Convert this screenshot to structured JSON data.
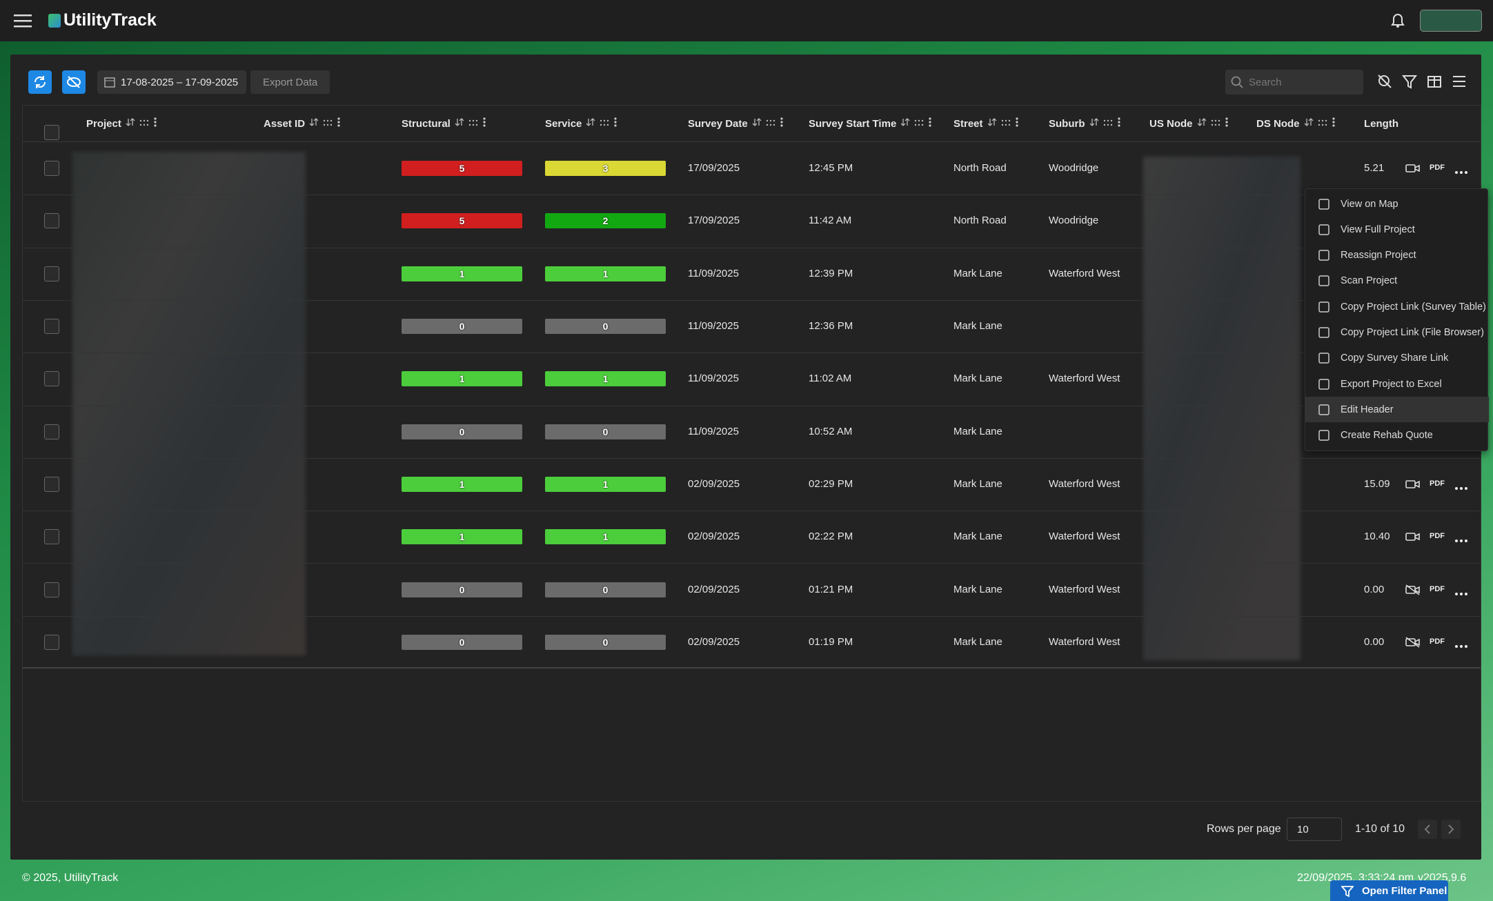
{
  "header": {
    "brand": "UtilityTrack"
  },
  "toolbar": {
    "date_range": "17-08-2025 – 17-09-2025",
    "export": "Export Data",
    "search_placeholder": "Search"
  },
  "table": {
    "columns": [
      "Project",
      "Asset ID",
      "Structural",
      "Service",
      "Survey Date",
      "Survey Start Time",
      "Street",
      "Suburb",
      "US Node",
      "DS Node",
      "Length"
    ],
    "pdf_label": "PDF",
    "rows": [
      {
        "structural": 5,
        "service": 3,
        "survey_date": "17/09/2025",
        "start_time": "12:45 PM",
        "street": "North Road",
        "suburb": "Woodridge",
        "length": "5.21",
        "video": true
      },
      {
        "structural": 5,
        "service": 2,
        "survey_date": "17/09/2025",
        "start_time": "11:42 AM",
        "street": "North Road",
        "suburb": "Woodridge",
        "video": true
      },
      {
        "structural": 1,
        "service": 1,
        "survey_date": "11/09/2025",
        "start_time": "12:39 PM",
        "street": "Mark Lane",
        "suburb": "Waterford West",
        "video": true
      },
      {
        "structural": 0,
        "service": 0,
        "survey_date": "11/09/2025",
        "start_time": "12:36 PM",
        "street": "Mark Lane",
        "video": true
      },
      {
        "structural": 1,
        "service": 1,
        "survey_date": "11/09/2025",
        "start_time": "11:02 AM",
        "street": "Mark Lane",
        "suburb": "Waterford West",
        "video": true
      },
      {
        "structural": 0,
        "service": 0,
        "survey_date": "11/09/2025",
        "start_time": "10:52 AM",
        "street": "Mark Lane",
        "video": true
      },
      {
        "structural": 1,
        "service": 1,
        "survey_date": "02/09/2025",
        "start_time": "02:29 PM",
        "street": "Mark Lane",
        "suburb": "Waterford West",
        "length": "15.09",
        "video": true
      },
      {
        "structural": 1,
        "service": 1,
        "survey_date": "02/09/2025",
        "start_time": "02:22 PM",
        "street": "Mark Lane",
        "suburb": "Waterford West",
        "length": "10.40",
        "video": true
      },
      {
        "structural": 0,
        "service": 0,
        "survey_date": "02/09/2025",
        "start_time": "01:21 PM",
        "street": "Mark Lane",
        "suburb": "Waterford West",
        "length": "0.00",
        "video": false
      },
      {
        "structural": 0,
        "service": 0,
        "survey_date": "02/09/2025",
        "start_time": "01:19 PM",
        "street": "Mark Lane",
        "suburb": "Waterford West",
        "length": "0.00",
        "video": false
      }
    ]
  },
  "grade_colors": {
    "0": "#6b6b6b",
    "1": "#4ccd3c",
    "2": "#12a812",
    "3": "#d9d834",
    "5": "#d11f1f"
  },
  "menu": {
    "items": [
      "View on Map",
      "View Full Project",
      "Reassign Project",
      "Scan Project",
      "Copy Project Link (Survey Table)",
      "Copy Project Link (File Browser)",
      "Copy Survey Share Link",
      "Export Project to Excel",
      "Edit Header",
      "Create Rehab Quote"
    ],
    "highlighted": 8
  },
  "pagination": {
    "rows_per_page_label": "Rows per page",
    "rows_per_page": 10,
    "range": "1-10 of 10"
  },
  "footer": {
    "copyright": "© 2025, UtilityTrack",
    "timestamp": "22/09/2025, 3:33:24 pm",
    "version": "v2025.9.6",
    "filter_button": "Open Filter Panel"
  }
}
